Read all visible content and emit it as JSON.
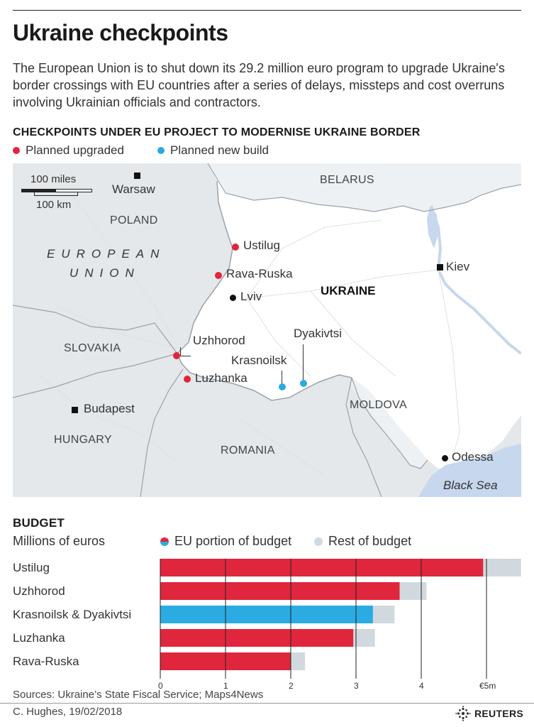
{
  "title": "Ukraine checkpoints",
  "intro": "The European Union is to shut down its 29.2 million euro program to upgrade Ukraine's border crossings with EU countries after a series of delays, missteps and cost overruns involving Ukrainian officials and contractors.",
  "map_section": {
    "title": "CHECKPOINTS UNDER EU PROJECT TO MODERNISE UKRAINE BORDER",
    "legend": [
      {
        "label": "Planned upgraded",
        "color": "#e0263c"
      },
      {
        "label": "Planned new build",
        "color": "#2aabe2"
      }
    ],
    "scale": {
      "miles": "100 miles",
      "km": "100 km"
    },
    "countries": {
      "belarus": "BELARUS",
      "poland": "POLAND",
      "eu": [
        "EUROPEAN",
        "UNION"
      ],
      "ukraine": "UKRAINE",
      "slovakia": "SLOVAKIA",
      "hungary": "HUNGARY",
      "romania": "ROMANIA",
      "moldova": "MOLDOVA",
      "sea": "Black Sea"
    },
    "cities": {
      "warsaw": "Warsaw",
      "kiev": "Kiev",
      "lviv": "Lviv",
      "budapest": "Budapest",
      "odessa": "Odessa"
    },
    "checkpoints": {
      "ustilug": "Ustilug",
      "rava": "Rava-Ruska",
      "uzhhorod": "Uzhhorod",
      "luzhanka": "Luzhanka",
      "krasnoilsk": "Krasnoilsk",
      "dyakivtsi": "Dyakivtsi"
    }
  },
  "budget": {
    "title": "BUDGET",
    "subtitle": "Millions of euros",
    "legend": [
      {
        "label": "EU portion of budget"
      },
      {
        "label": "Rest of budget",
        "color": "#d1d9de"
      }
    ]
  },
  "chart_data": {
    "type": "bar",
    "orientation": "horizontal",
    "stacked": true,
    "categories": [
      "Ustilug",
      "Uzhhorod",
      "Krasnoilsk & Dyakivtsi",
      "Luzhanka",
      "Rava-Ruska"
    ],
    "series": [
      {
        "name": "EU portion of budget",
        "values": [
          4.95,
          3.67,
          3.26,
          2.96,
          2.0
        ],
        "colors": [
          "#e0263c",
          "#e0263c",
          "#2aabe2",
          "#e0263c",
          "#e0263c"
        ]
      },
      {
        "name": "Rest of budget",
        "values": [
          0.58,
          0.41,
          0.33,
          0.33,
          0.22
        ],
        "color": "#d1d9de"
      }
    ],
    "xlim": [
      0,
      5.5
    ],
    "x_ticks": [
      "0",
      "1",
      "2",
      "3",
      "4",
      "€5m"
    ],
    "grid": true
  },
  "footer": {
    "sources": "Sources: Ukraine’s State Fiscal Service; Maps4News",
    "credit": "C. Hughes, 19/02/2018",
    "logo": "REUTERS"
  }
}
